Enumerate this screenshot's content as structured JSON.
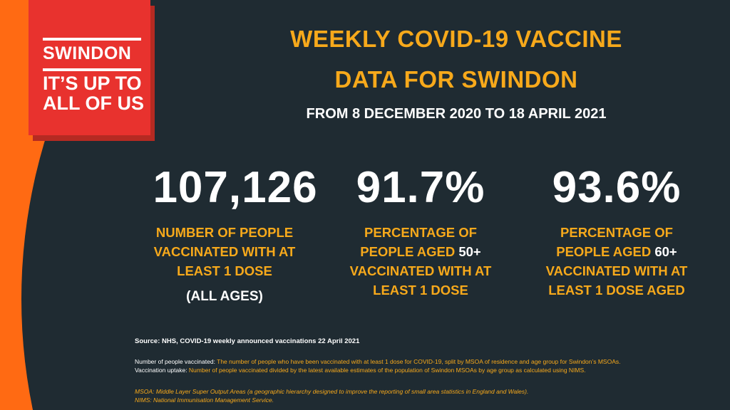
{
  "badge": {
    "line1": "SWINDON",
    "line2a": "IT’S UP TO",
    "line2b": "ALL OF US"
  },
  "title": {
    "line1": "WEEKLY COVID-19 VACCINE",
    "line2": "DATA FOR SWINDON"
  },
  "subtitle": "FROM 8 DECEMBER 2020 TO 18 APRIL 2021",
  "stats": [
    {
      "value": "107,126",
      "desc_lines": [
        "NUMBER OF PEOPLE",
        "VACCINATED WITH AT",
        "LEAST 1 DOSE"
      ],
      "note": "(ALL AGES)"
    },
    {
      "value": "91.7%",
      "desc_line1": "PERCENTAGE OF",
      "desc_line2_pre": "PEOPLE AGED ",
      "desc_line2_age": "50+",
      "desc_line3": "VACCINATED WITH AT",
      "desc_line4": "LEAST 1 DOSE"
    },
    {
      "value": "93.6%",
      "desc_line1": "PERCENTAGE OF",
      "desc_line2_pre": "PEOPLE AGED ",
      "desc_line2_age": "60+",
      "desc_line3": "VACCINATED WITH AT",
      "desc_line4": "LEAST 1 DOSE AGED"
    }
  ],
  "source": "Source: NHS, COVID-19 weekly announced vaccinations 22 April 2021",
  "notes": [
    {
      "key": "Number of people vaccinated: ",
      "value": "The number of people who have been vaccinated with at least 1 dose for COVID-19, split by MSOA of residence and age group for Swindon’s MSOAs."
    },
    {
      "key": "Vaccination uptake: ",
      "value": "Number of people vaccinated divided by the latest available estimates of the population of Swindon MSOAs by age group as calculated using NIMS."
    }
  ],
  "definitions": [
    "MSOA: Middle Layer Super Output Areas (a geographic hierarchy designed to improve the reporting of small area statistics in England and Wales).",
    "NIMS: National Immunisation Management Service."
  ],
  "colors": {
    "orange": "#ff6a13",
    "navy": "#1f2b32",
    "red": "#e8322e",
    "gold": "#f7a91b"
  }
}
